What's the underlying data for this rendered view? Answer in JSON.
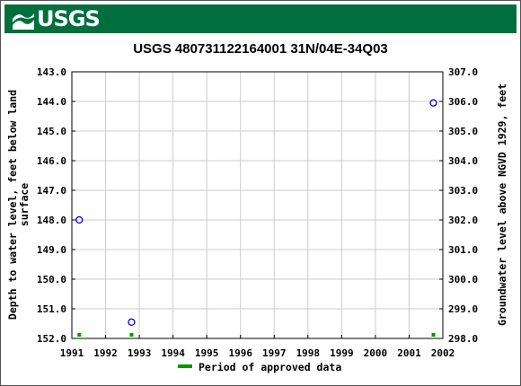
{
  "header": {
    "logo_text": "USGS",
    "bar_color": "#006e3d"
  },
  "chart_data": {
    "type": "scatter",
    "title": "USGS 480731122164001 31N/04E-34Q03",
    "ylabel_left": [
      "Depth to water level, feet below land",
      "surface"
    ],
    "ylabel_right": "Groundwater level above NGVD 1929, feet",
    "xlim": [
      1991,
      2002
    ],
    "ylim_left": [
      143.0,
      152.0
    ],
    "ylim_right": [
      307.0,
      298.0
    ],
    "y_left_inverted": true,
    "x_ticks": [
      "1991",
      "1992",
      "1993",
      "1994",
      "1995",
      "1996",
      "1997",
      "1998",
      "1999",
      "2000",
      "2001",
      "2002"
    ],
    "y_left_ticks": [
      "143.0",
      "144.0",
      "145.0",
      "146.0",
      "147.0",
      "148.0",
      "149.0",
      "150.0",
      "151.0",
      "152.0"
    ],
    "y_right_ticks": [
      "307.0",
      "306.0",
      "305.0",
      "304.0",
      "303.0",
      "302.0",
      "301.0",
      "300.0",
      "299.0",
      "298.0"
    ],
    "grid": true,
    "points": [
      {
        "x": 1991.22,
        "y": 148.0
      },
      {
        "x": 1992.77,
        "y": 151.45
      },
      {
        "x": 2001.72,
        "y": 144.05
      }
    ],
    "approved_periods": [
      1991.22,
      1992.77,
      2001.72
    ],
    "marker_color": "#0000cc",
    "approved_color": "#009900",
    "legend": {
      "label": "Period of approved data",
      "position": "bottom"
    }
  }
}
